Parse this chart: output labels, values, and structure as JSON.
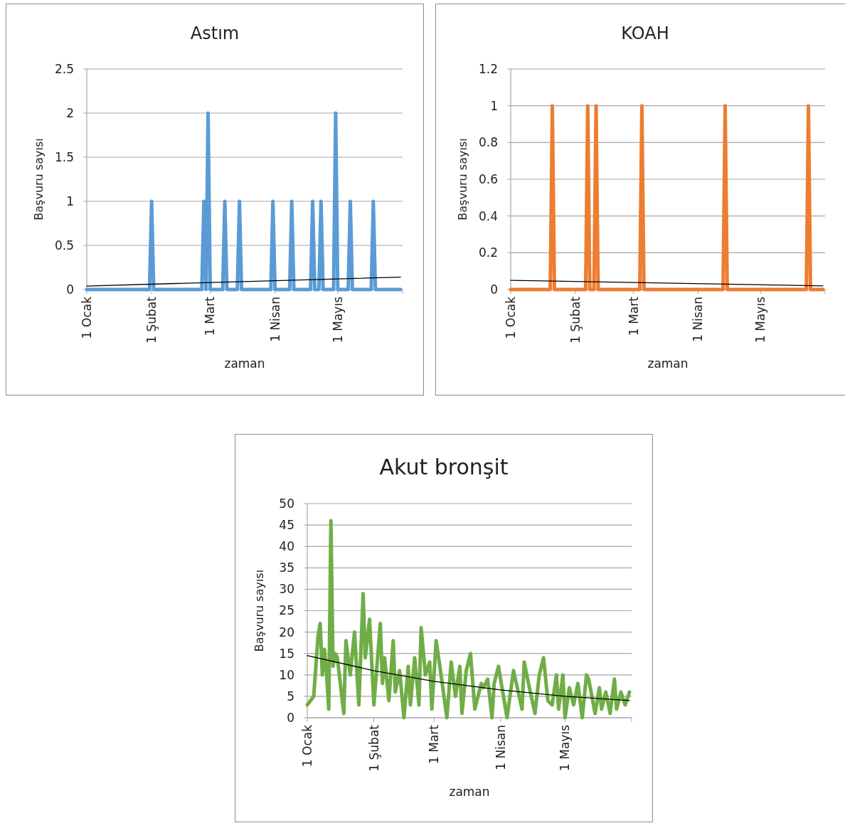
{
  "chart_data": [
    {
      "type": "line",
      "title": "Astım",
      "xlabel": "zaman",
      "ylabel": "Başvuru sayısı",
      "xlim": [
        "--01-01",
        "--06-01"
      ],
      "xticks": [
        {
          "value": "--01-01",
          "label": "1 Ocak"
        },
        {
          "value": "--02-01",
          "label": "1 Şubat"
        },
        {
          "value": "--03-01",
          "label": "1 Mart"
        },
        {
          "value": "--04-01",
          "label": "1 Nisan"
        },
        {
          "value": "--05-01",
          "label": "1 Mayıs"
        },
        {
          "value": "--06-01",
          "label": null
        }
      ],
      "ylim": [
        0,
        2.5
      ],
      "yticks": [
        0,
        0.5,
        1,
        1.5,
        2,
        2.5
      ],
      "grid": "y",
      "series": [
        {
          "color": "#5b9bd5",
          "x": [
            "--01-01",
            "--01-31",
            "--02-01",
            "--02-02",
            "--02-25",
            "--02-26",
            "--02-27",
            "--02-28",
            "--03-01",
            "--03-07",
            "--03-08",
            "--03-09",
            "--03-14",
            "--03-15",
            "--03-16",
            "--03-30",
            "--03-31",
            "--04-01",
            "--04-08",
            "--04-09",
            "--04-10",
            "--04-18",
            "--04-19",
            "--04-20",
            "--04-22",
            "--04-23",
            "--04-24",
            "--04-29",
            "--04-30",
            "--05-01",
            "--05-06",
            "--05-07",
            "--05-08",
            "--05-17",
            "--05-18",
            "--05-19",
            "--05-31"
          ],
          "values": [
            0,
            0,
            1,
            0,
            0,
            1,
            0,
            2,
            0,
            0,
            1,
            0,
            0,
            1,
            0,
            0,
            1,
            0,
            0,
            1,
            0,
            0,
            1,
            0,
            0,
            1,
            0,
            0,
            2,
            0,
            0,
            1,
            0,
            0,
            1,
            0,
            0
          ]
        },
        {
          "type": "line",
          "color": "#000000",
          "x": [
            "--01-01",
            "--05-31"
          ],
          "values": [
            0.04,
            0.14
          ]
        }
      ]
    },
    {
      "type": "line",
      "title": "KOAH",
      "xlabel": "zaman",
      "ylabel": "Başvuru sayısı",
      "xlim": [
        "--01-01",
        "--06-01"
      ],
      "xticks": [
        {
          "value": "--01-01",
          "label": "1 Ocak"
        },
        {
          "value": "--02-01",
          "label": "1 Şubat"
        },
        {
          "value": "--03-01",
          "label": "1 Mart"
        },
        {
          "value": "--04-01",
          "label": "1 Nisan"
        },
        {
          "value": "--05-01",
          "label": "1 Mayıs"
        },
        {
          "value": "--06-01",
          "label": null
        }
      ],
      "ylim": [
        0,
        1.2
      ],
      "yticks": [
        0,
        0.2,
        0.4,
        0.6,
        0.8,
        1,
        1.2
      ],
      "grid": "y",
      "series": [
        {
          "color": "#ed7d31",
          "x": [
            "--01-01",
            "--01-20",
            "--01-21",
            "--01-22",
            "--02-06",
            "--02-07",
            "--02-08",
            "--02-10",
            "--02-11",
            "--02-12",
            "--03-04",
            "--03-05",
            "--03-06",
            "--04-13",
            "--04-14",
            "--04-15",
            "--05-23",
            "--05-24",
            "--05-25",
            "--05-31"
          ],
          "values": [
            0,
            0,
            1,
            0,
            0,
            1,
            0,
            0,
            1,
            0,
            0,
            1,
            0,
            0,
            1,
            0,
            0,
            1,
            0,
            0
          ]
        },
        {
          "type": "line",
          "color": "#000000",
          "x": [
            "--01-01",
            "--05-31"
          ],
          "values": [
            0.05,
            0.02
          ]
        }
      ]
    },
    {
      "type": "line",
      "title": "Akut bronşit",
      "xlabel": "zaman",
      "ylabel": "Başvuru sayısı",
      "xlim": [
        "--01-01",
        "--06-01"
      ],
      "xticks": [
        {
          "value": "--01-01",
          "label": "1 Ocak"
        },
        {
          "value": "--02-01",
          "label": "1 Şubat"
        },
        {
          "value": "--03-01",
          "label": "1 Mart"
        },
        {
          "value": "--04-01",
          "label": "1 Nisan"
        },
        {
          "value": "--05-01",
          "label": "1 Mayıs"
        },
        {
          "value": "--06-01",
          "label": null
        }
      ],
      "ylim": [
        0,
        50
      ],
      "yticks": [
        0,
        5,
        10,
        15,
        20,
        25,
        30,
        35,
        40,
        45,
        50
      ],
      "grid": "y",
      "series": [
        {
          "color": "#70ad47",
          "x": [
            "--01-01",
            "--01-04",
            "--01-06",
            "--01-07",
            "--01-08",
            "--01-09",
            "--01-10",
            "--01-11",
            "--01-12",
            "--01-13",
            "--01-14",
            "--01-15",
            "--01-18",
            "--01-19",
            "--01-21",
            "--01-23",
            "--01-25",
            "--01-27",
            "--01-28",
            "--01-30",
            "--02-01",
            "--02-04",
            "--02-05",
            "--02-06",
            "--02-08",
            "--02-10",
            "--02-11",
            "--02-13",
            "--02-15",
            "--02-17",
            "--02-18",
            "--02-20",
            "--02-22",
            "--02-23",
            "--02-25",
            "--02-27",
            "--02-28",
            "--03-02",
            "--03-04",
            "--03-07",
            "--03-09",
            "--03-11",
            "--03-13",
            "--03-14",
            "--03-16",
            "--03-18",
            "--03-20",
            "--03-23",
            "--03-24",
            "--03-26",
            "--03-28",
            "--03-29",
            "--03-31",
            "--04-04",
            "--04-07",
            "--04-11",
            "--04-12",
            "--04-14",
            "--04-17",
            "--04-19",
            "--04-21",
            "--04-23",
            "--04-25",
            "--04-27",
            "--04-28",
            "--04-30",
            "--05-01",
            "--05-03",
            "--05-05",
            "--05-07",
            "--05-09",
            "--05-11",
            "--05-12",
            "--05-15",
            "--05-17",
            "--05-18",
            "--05-20",
            "--05-22",
            "--05-24",
            "--05-25",
            "--05-27",
            "--05-29",
            "--05-31"
          ],
          "values": [
            3,
            5,
            19,
            22,
            10,
            16,
            10,
            2,
            46,
            12,
            15,
            14,
            1,
            18,
            10,
            20,
            3,
            29,
            14,
            23,
            3,
            22,
            8,
            14,
            4,
            18,
            6,
            11,
            0,
            12,
            3,
            14,
            3,
            21,
            10,
            13,
            2,
            18,
            11,
            0,
            13,
            5,
            12,
            1,
            11,
            15,
            2,
            8,
            7,
            9,
            0,
            8,
            12,
            0,
            11,
            2,
            13,
            8,
            1,
            10,
            14,
            4,
            3,
            10,
            2,
            10,
            0,
            7,
            3,
            8,
            0,
            10,
            9,
            1,
            7,
            2,
            6,
            1,
            9,
            2,
            6,
            3,
            6
          ]
        },
        {
          "type": "line",
          "color": "#000000",
          "x": [
            "--01-01",
            "--02-01",
            "--03-01",
            "--04-01",
            "--05-01",
            "--05-31"
          ],
          "values": [
            14.5,
            11,
            8.5,
            6.5,
            5,
            4
          ]
        }
      ]
    }
  ]
}
